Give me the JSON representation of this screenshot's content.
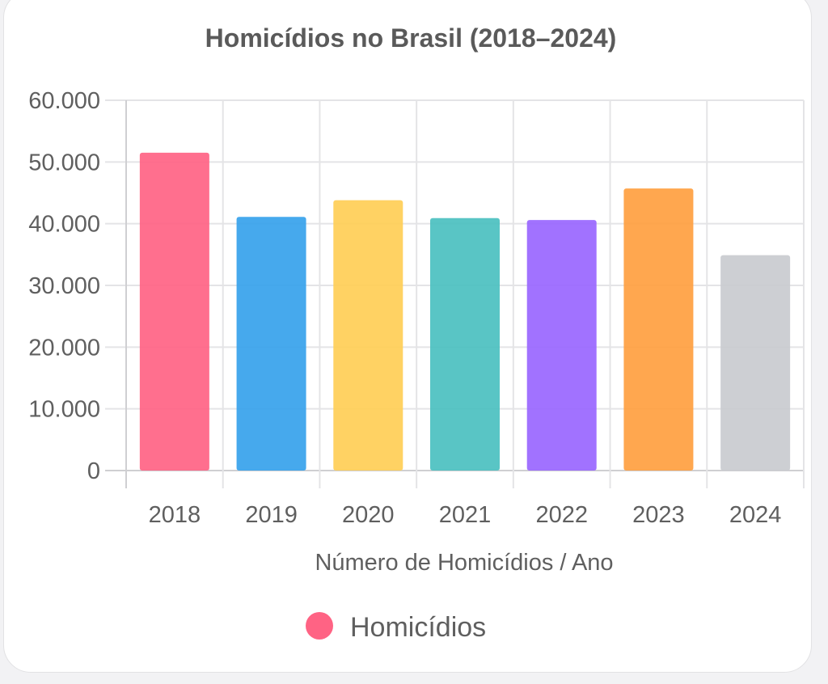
{
  "chart_data": {
    "type": "bar",
    "title": "Homicídios no Brasil (2018–2024)",
    "xlabel": "Número de Homicídios / Ano",
    "ylabel": "",
    "categories": [
      "2018",
      "2019",
      "2020",
      "2021",
      "2022",
      "2023",
      "2024"
    ],
    "series": [
      {
        "name": "Homicídios",
        "values": [
          51500,
          41100,
          43800,
          40900,
          40600,
          45700,
          34900
        ],
        "colors": [
          "#ff6384",
          "#36a2eb",
          "#ffce56",
          "#4bc0c0",
          "#9966ff",
          "#ff9f40",
          "#c9cbcf"
        ]
      }
    ],
    "ylim": [
      0,
      60000
    ],
    "yticks": [
      "0",
      "10.000",
      "20.000",
      "30.000",
      "40.000",
      "50.000",
      "60.000"
    ],
    "grid": true,
    "legend_position": "bottom"
  }
}
